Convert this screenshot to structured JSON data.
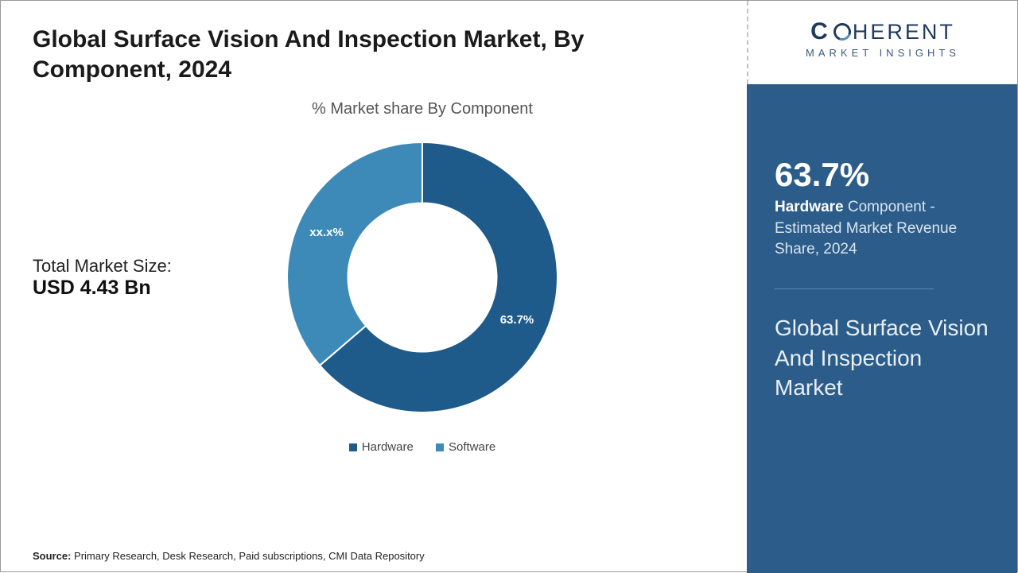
{
  "title": "Global Surface Vision And Inspection Market, By Component, 2024",
  "chart": {
    "subtitle": "% Market share By Component",
    "type": "donut",
    "inner_radius_pct": 55,
    "series": [
      {
        "name": "Hardware",
        "value": 63.7,
        "label": "63.7%",
        "color": "#1e5a8a"
      },
      {
        "name": "Software",
        "value": 36.3,
        "label": "xx.x%",
        "color": "#3d8ab8"
      }
    ],
    "background_color": "#ffffff",
    "separator_color": "#ffffff",
    "separator_width": 2,
    "label_color": "#ffffff",
    "label_fontsize": 15
  },
  "market_size": {
    "label": "Total Market Size:",
    "value": "USD 4.43 Bn"
  },
  "legend": {
    "items": [
      {
        "swatch": "#1e5a8a",
        "text": "Hardware"
      },
      {
        "swatch": "#3d8ab8",
        "text": "Software"
      }
    ]
  },
  "source": {
    "prefix": "Source:",
    "text": "Primary Research, Desk Research, Paid subscriptions, CMI Data Repository"
  },
  "logo": {
    "line1_left": "C",
    "line1_right": "HERENT",
    "line2": "MARKET INSIGHTS"
  },
  "sidebar": {
    "stat_value": "63.7%",
    "stat_bold": "Hardware",
    "stat_rest": " Component - Estimated Market Revenue Share, 2024",
    "market_name": "Global Surface Vision And Inspection Market",
    "bg_color": "#2c5d8a"
  }
}
